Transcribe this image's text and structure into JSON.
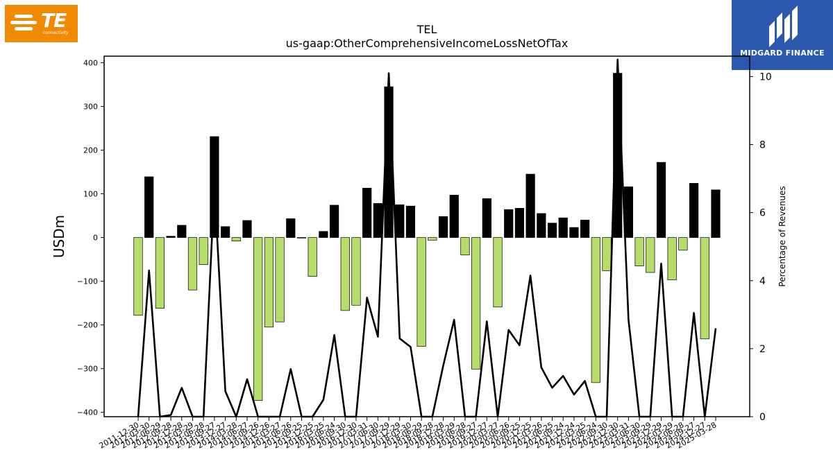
{
  "logos": {
    "left": {
      "name": "TE",
      "sub": "connectivity",
      "color": "#f08a00"
    },
    "right": {
      "name": "MIDGARD FINANCE",
      "color": "#2c58b0"
    }
  },
  "chart_data": {
    "type": "bar",
    "title": "TEL",
    "subtitle": "us-gaap:OtherComprehensiveIncomeLossNetOfTax",
    "ylabel": "USDm",
    "y2label": "Percentage of Revenues",
    "ylim": [
      -410,
      415
    ],
    "y2lim": [
      0,
      10.6
    ],
    "yticks": [
      -400,
      -300,
      -200,
      -100,
      0,
      100,
      200,
      300,
      400
    ],
    "y2ticks": [
      0,
      2,
      4,
      6,
      8,
      10
    ],
    "grid": false,
    "colors": {
      "positive_bar": "#000000",
      "negative_bar": "#b5dd6b",
      "line": "#000000"
    },
    "categories": [
      "2011-12-30",
      "2012-03-30",
      "2012-06-29",
      "2012-09-28",
      "2012-12-28",
      "2013-03-29",
      "2013-06-28",
      "2013-09-27",
      "2013-12-27",
      "2014-03-28",
      "2014-06-27",
      "2014-09-26",
      "2014-12-26",
      "2015-03-27",
      "2015-06-26",
      "2015-09-25",
      "2015-12-25",
      "2016-03-25",
      "2016-06-24",
      "2016-09-30",
      "2016-12-30",
      "2017-03-31",
      "2017-06-30",
      "2017-09-29",
      "2017-12-29",
      "2018-03-30",
      "2018-06-29",
      "2018-09-28",
      "2018-12-28",
      "2019-03-29",
      "2019-06-28",
      "2019-09-27",
      "2019-12-27",
      "2020-03-27",
      "2020-06-26",
      "2020-09-25",
      "2020-12-25",
      "2021-03-26",
      "2021-06-25",
      "2021-09-24",
      "2021-12-24",
      "2022-03-25",
      "2022-06-24",
      "2022-09-30",
      "2022-12-30",
      "2023-03-31",
      "2023-06-30",
      "2023-09-29",
      "2023-12-29",
      "2024-03-29",
      "2024-06-28",
      "2024-09-27",
      "2024-12-27",
      "2025-03-28"
    ],
    "values": [
      -178,
      139,
      -162,
      3,
      28,
      -120,
      -62,
      231,
      25,
      -8,
      39,
      -373,
      -205,
      -193,
      43,
      0,
      -89,
      14,
      74,
      -167,
      -155,
      113,
      78,
      345,
      75,
      72,
      -249,
      -6,
      48,
      97,
      -40,
      -301,
      89,
      -159,
      64,
      67,
      145,
      55,
      33,
      45,
      23,
      40,
      -332,
      -76,
      376,
      116,
      -65,
      -80,
      172,
      -97,
      -29,
      124,
      -232,
      109
    ],
    "series": [
      {
        "name": "",
        "axis": "y2",
        "values": [
          0,
          4.3,
          0,
          0.05,
          0.85,
          0,
          0,
          6.8,
          0.75,
          0,
          1.1,
          0,
          0,
          0,
          1.4,
          0,
          0,
          0.5,
          2.4,
          0,
          0,
          3.5,
          2.35,
          10.1,
          2.3,
          2.05,
          0,
          0,
          1.5,
          2.85,
          0,
          0,
          2.8,
          0,
          2.55,
          2.1,
          4.15,
          1.45,
          0.85,
          1.2,
          0.65,
          1.05,
          0,
          0,
          10.5,
          2.85,
          0,
          0,
          4.5,
          0,
          0,
          3.05,
          0,
          2.6
        ]
      }
    ]
  }
}
